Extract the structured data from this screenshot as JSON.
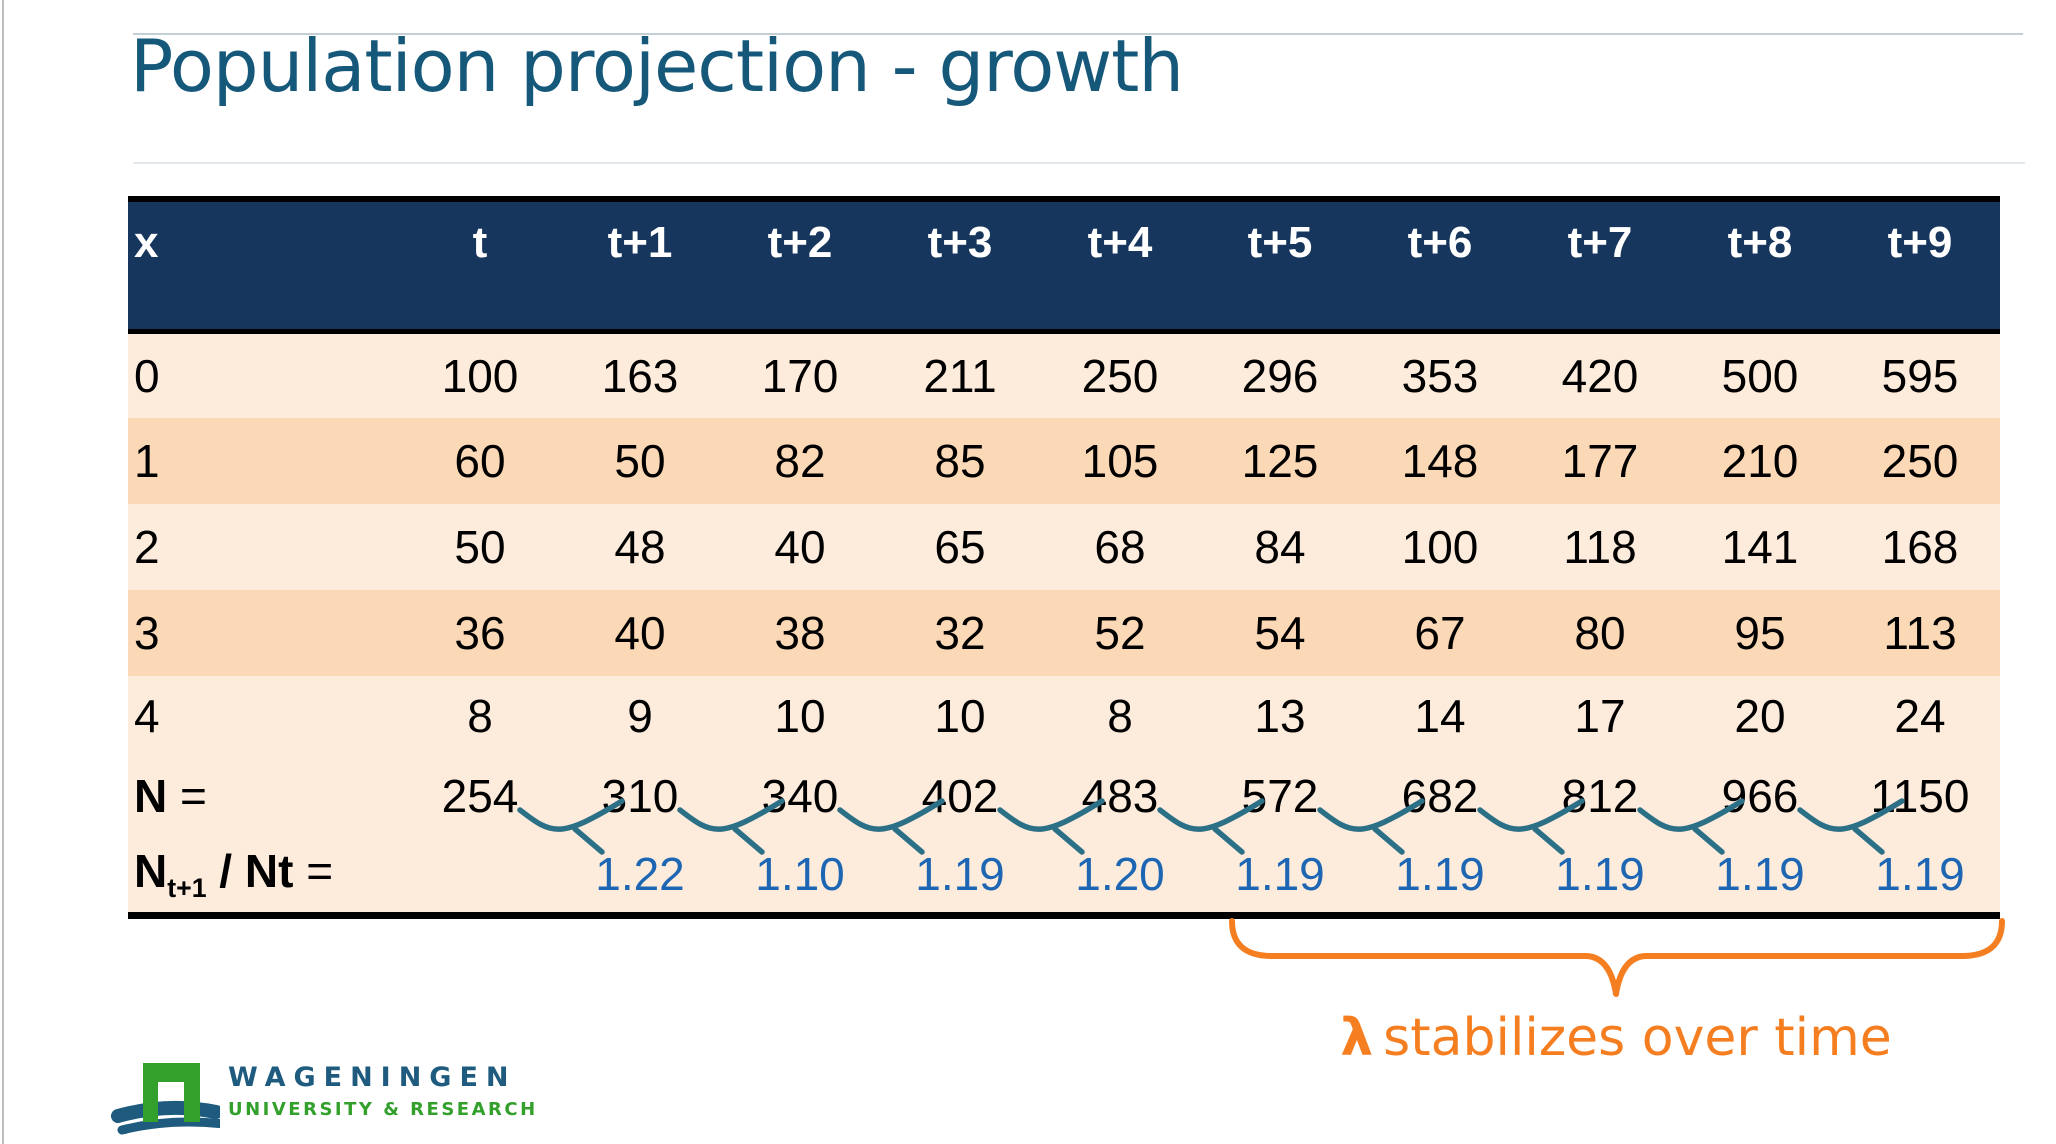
{
  "slide": {
    "title": "Population projection - growth",
    "annotation": {
      "symbol": "λ",
      "text": "stabilizes over time"
    },
    "logo": {
      "line1": "WAGENINGEN",
      "line2": "UNIVERSITY & RESEARCH"
    },
    "colors": {
      "title": "#15587A",
      "header_bg": "#17365D",
      "header_text": "#FFFFFF",
      "row_light": "#FDEBDC",
      "row_dark": "#FBD8B6",
      "ratio_text": "#1C66B3",
      "connector": "#2B7087",
      "accent_orange": "#F57E21",
      "logo_green": "#33A02C",
      "logo_teal": "#1E5B7E"
    }
  },
  "table": {
    "columns": [
      "x",
      "t",
      "t+1",
      "t+2",
      "t+3",
      "t+4",
      "t+5",
      "t+6",
      "t+7",
      "t+8",
      "t+9"
    ],
    "rows": [
      {
        "label": "0",
        "shade": "light",
        "values": [
          "100",
          "163",
          "170",
          "211",
          "250",
          "296",
          "353",
          "420",
          "500",
          "595"
        ]
      },
      {
        "label": "1",
        "shade": "dark",
        "values": [
          "60",
          "50",
          "82",
          "85",
          "105",
          "125",
          "148",
          "177",
          "210",
          "250"
        ]
      },
      {
        "label": "2",
        "shade": "light",
        "values": [
          "50",
          "48",
          "40",
          "65",
          "68",
          "84",
          "100",
          "118",
          "141",
          "168"
        ]
      },
      {
        "label": "3",
        "shade": "dark",
        "values": [
          "36",
          "40",
          "38",
          "32",
          "52",
          "54",
          "67",
          "80",
          "95",
          "113"
        ]
      },
      {
        "label": "4",
        "shade": "light",
        "values": [
          "8",
          "9",
          "10",
          "10",
          "8",
          "13",
          "14",
          "17",
          "20",
          "24"
        ]
      },
      {
        "label": "N",
        "label_suffix": "=",
        "label_bold": true,
        "shade": "light",
        "values": [
          "254",
          "310",
          "340",
          "402",
          "483",
          "572",
          "682",
          "812",
          "966",
          "1150"
        ]
      },
      {
        "label": "N",
        "label_sub": "t+1",
        "label_rest": " / Nt",
        "label_suffix": "=",
        "label_bold": true,
        "type": "ratio",
        "shade": "light",
        "values": [
          "",
          "1.22",
          "1.10",
          "1.19",
          "1.20",
          "1.19",
          "1.19",
          "1.19",
          "1.19",
          "1.19"
        ]
      }
    ],
    "connector_count": 9
  }
}
